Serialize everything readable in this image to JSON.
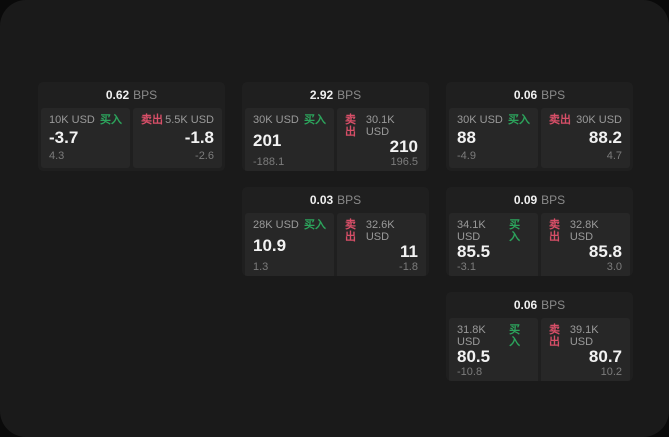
{
  "labels": {
    "bps_unit": "BPS",
    "buy": "买入",
    "sell": "卖出"
  },
  "colors": {
    "buy_green": "#2ca45c",
    "sell_red": "#d84f68",
    "page_bg": "#1a1a1a",
    "card_bg": "#1f1f1f",
    "panel_bg": "#272727"
  },
  "cards": [
    {
      "row": 1,
      "col": 1,
      "bps": "0.62",
      "buy": {
        "amount": "10K USD",
        "value": "-3.7",
        "sub": "4.3"
      },
      "sell": {
        "amount": "5.5K USD",
        "value": "-1.8",
        "sub": "-2.6"
      }
    },
    {
      "row": 1,
      "col": 2,
      "bps": "2.92",
      "buy": {
        "amount": "30K USD",
        "value": "201",
        "sub": "-188.1"
      },
      "sell": {
        "amount": "30.1K USD",
        "value": "210",
        "sub": "196.5"
      }
    },
    {
      "row": 1,
      "col": 3,
      "bps": "0.06",
      "buy": {
        "amount": "30K USD",
        "value": "88",
        "sub": "-4.9"
      },
      "sell": {
        "amount": "30K USD",
        "value": "88.2",
        "sub": "4.7"
      }
    },
    {
      "row": 2,
      "col": 2,
      "bps": "0.03",
      "buy": {
        "amount": "28K USD",
        "value": "10.9",
        "sub": "1.3"
      },
      "sell": {
        "amount": "32.6K USD",
        "value": "11",
        "sub": "-1.8"
      }
    },
    {
      "row": 2,
      "col": 3,
      "bps": "0.09",
      "buy": {
        "amount": "34.1K USD",
        "value": "85.5",
        "sub": "-3.1"
      },
      "sell": {
        "amount": "32.8K USD",
        "value": "85.8",
        "sub": "3.0"
      }
    },
    {
      "row": 3,
      "col": 3,
      "bps": "0.06",
      "buy": {
        "amount": "31.8K USD",
        "value": "80.5",
        "sub": "-10.8"
      },
      "sell": {
        "amount": "39.1K USD",
        "value": "80.7",
        "sub": "10.2"
      }
    }
  ]
}
